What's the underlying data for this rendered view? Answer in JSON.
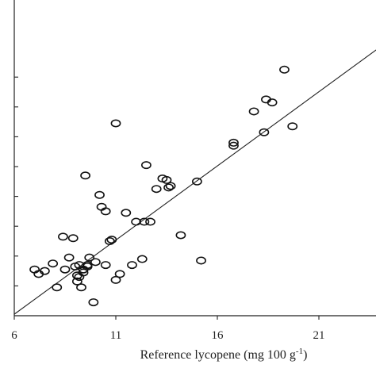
{
  "chart_data": {
    "type": "scatter",
    "title": "",
    "xlabel": "Reference lycopene (mg 100 g",
    "xlabel_superscript": "-1",
    "xlabel_suffix": ")",
    "ylabel": "",
    "xlim": [
      6,
      24
    ],
    "ylim": [
      6,
      24
    ],
    "x_ticks": [
      6,
      11,
      16,
      21
    ],
    "y_tick_values": [
      8,
      10,
      12,
      14,
      16,
      18,
      20,
      22
    ],
    "grid": false,
    "legend": "none",
    "marker": "open-ellipse",
    "fit_line": {
      "x": [
        6,
        24
      ],
      "y": [
        6.1,
        24.0
      ]
    },
    "series": [
      {
        "x": [
          7.0,
          7.2,
          7.5,
          7.9,
          8.1,
          8.4,
          8.5,
          8.7,
          8.9,
          9.0,
          9.1,
          9.1,
          9.2,
          9.2,
          9.3,
          9.4,
          9.4,
          9.5,
          9.6,
          9.6,
          9.7,
          9.9,
          10.0,
          10.2,
          10.3,
          10.5,
          10.5,
          10.7,
          10.8,
          11.0,
          11.0,
          11.2,
          11.5,
          11.8,
          12.0,
          12.3,
          12.4,
          12.5,
          12.7,
          13.0,
          13.3,
          13.5,
          13.6,
          13.7,
          14.2,
          15.0,
          15.2,
          16.8,
          16.8,
          17.8,
          18.3,
          18.4,
          18.7,
          19.3,
          19.7
        ],
        "y": [
          9.1,
          8.8,
          9.0,
          9.5,
          7.9,
          11.3,
          9.1,
          9.9,
          11.2,
          9.3,
          8.7,
          8.3,
          8.6,
          9.4,
          7.9,
          8.9,
          9.1,
          15.4,
          9.4,
          9.3,
          9.9,
          6.9,
          9.6,
          14.1,
          13.3,
          13.0,
          9.4,
          11.0,
          11.1,
          8.4,
          18.9,
          8.8,
          12.9,
          9.4,
          12.3,
          9.8,
          12.3,
          16.1,
          12.3,
          14.5,
          15.2,
          15.1,
          14.6,
          14.7,
          11.4,
          15.0,
          9.7,
          17.4,
          17.6,
          19.7,
          18.3,
          20.5,
          20.3,
          22.5,
          18.7
        ]
      }
    ]
  }
}
